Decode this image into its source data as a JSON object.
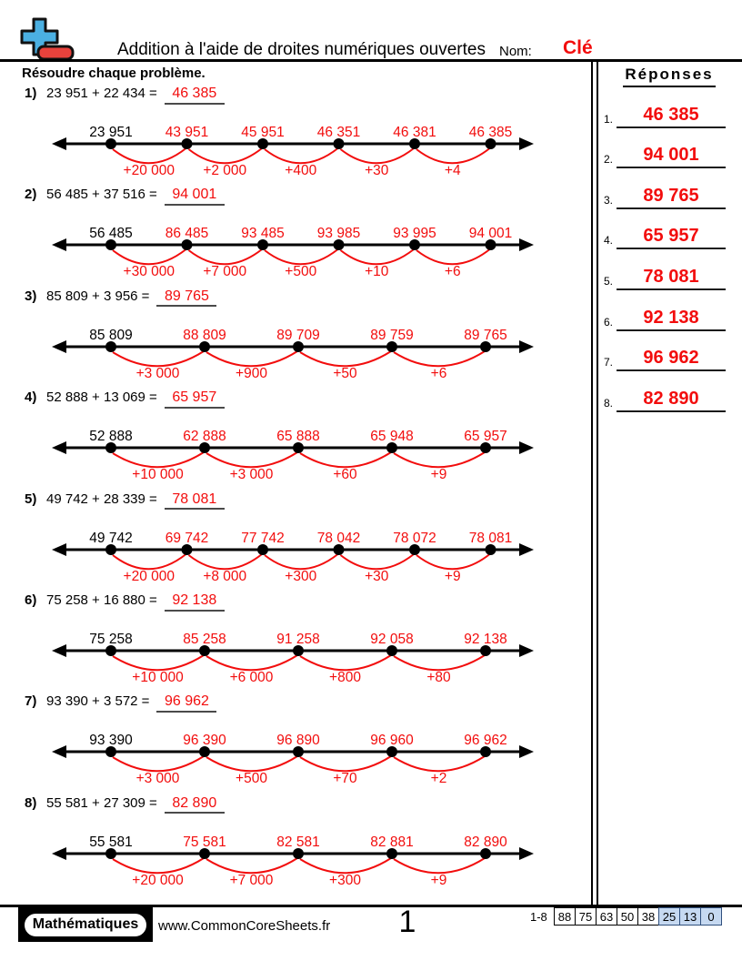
{
  "colors": {
    "accent_red": "#f20d0d",
    "underline_gray": "#4a4a4a",
    "score_highlight_blue": "#c6d9f1",
    "logo_blue": "#4bb0e2",
    "logo_red": "#e8423c"
  },
  "header": {
    "title": "Addition à l'aide de droites numériques ouvertes",
    "name_label": "Nom:",
    "name_value": "Clé",
    "instructions": "Résoudre chaque problème."
  },
  "answers_panel": {
    "title": "Réponses",
    "items": [
      {
        "num": "1.",
        "value": "46 385"
      },
      {
        "num": "2.",
        "value": "94 001"
      },
      {
        "num": "3.",
        "value": "89 765"
      },
      {
        "num": "4.",
        "value": "65 957"
      },
      {
        "num": "5.",
        "value": "78 081"
      },
      {
        "num": "6.",
        "value": "92 138"
      },
      {
        "num": "7.",
        "value": "96 962"
      },
      {
        "num": "8.",
        "value": "82 890"
      }
    ]
  },
  "problems": [
    {
      "num": "1)",
      "expression": "23 951 + 22 434 =",
      "answer": "46 385",
      "points": [
        "23 951",
        "43 951",
        "45 951",
        "46 351",
        "46 381",
        "46 385"
      ],
      "jumps": [
        "+20 000",
        "+2 000",
        "+400",
        "+30",
        "+4"
      ]
    },
    {
      "num": "2)",
      "expression": "56 485 + 37 516 =",
      "answer": "94 001",
      "points": [
        "56 485",
        "86 485",
        "93 485",
        "93 985",
        "93 995",
        "94 001"
      ],
      "jumps": [
        "+30 000",
        "+7 000",
        "+500",
        "+10",
        "+6"
      ]
    },
    {
      "num": "3)",
      "expression": "85 809 + 3 956 =",
      "answer": "89 765",
      "points": [
        "85 809",
        "88 809",
        "89 709",
        "89 759",
        "89 765"
      ],
      "jumps": [
        "+3 000",
        "+900",
        "+50",
        "+6"
      ]
    },
    {
      "num": "4)",
      "expression": "52 888 + 13 069 =",
      "answer": "65 957",
      "points": [
        "52 888",
        "62 888",
        "65 888",
        "65 948",
        "65 957"
      ],
      "jumps": [
        "+10 000",
        "+3 000",
        "+60",
        "+9"
      ]
    },
    {
      "num": "5)",
      "expression": "49 742 + 28 339 =",
      "answer": "78 081",
      "points": [
        "49 742",
        "69 742",
        "77 742",
        "78 042",
        "78 072",
        "78 081"
      ],
      "jumps": [
        "+20 000",
        "+8 000",
        "+300",
        "+30",
        "+9"
      ]
    },
    {
      "num": "6)",
      "expression": "75 258 + 16 880 =",
      "answer": "92 138",
      "points": [
        "75 258",
        "85 258",
        "91 258",
        "92 058",
        "92 138"
      ],
      "jumps": [
        "+10 000",
        "+6 000",
        "+800",
        "+80"
      ]
    },
    {
      "num": "7)",
      "expression": "93 390 + 3 572 =",
      "answer": "96 962",
      "points": [
        "93 390",
        "96 390",
        "96 890",
        "96 960",
        "96 962"
      ],
      "jumps": [
        "+3 000",
        "+500",
        "+70",
        "+2"
      ]
    },
    {
      "num": "8)",
      "expression": "55 581 + 27 309 =",
      "answer": "82 890",
      "points": [
        "55 581",
        "75 581",
        "82 581",
        "82 881",
        "82 890"
      ],
      "jumps": [
        "+20 000",
        "+7 000",
        "+300",
        "+9"
      ]
    }
  ],
  "footer": {
    "badge": "Mathématiques",
    "url": "www.CommonCoreSheets.fr",
    "page": "1",
    "score_label": "1-8",
    "score_cells": [
      {
        "value": "88",
        "highlight": false
      },
      {
        "value": "75",
        "highlight": false
      },
      {
        "value": "63",
        "highlight": false
      },
      {
        "value": "50",
        "highlight": false
      },
      {
        "value": "38",
        "highlight": false
      },
      {
        "value": "25",
        "highlight": true
      },
      {
        "value": "13",
        "highlight": true
      },
      {
        "value": "0",
        "highlight": true
      }
    ]
  }
}
